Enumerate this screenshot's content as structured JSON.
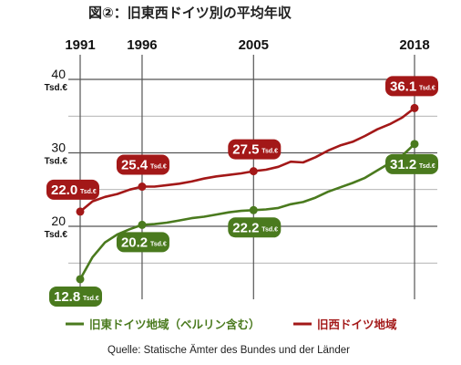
{
  "chart_data": {
    "type": "line",
    "title": "図②：旧東西ドイツ別の平均年収",
    "x": [
      1991,
      1992,
      1993,
      1994,
      1995,
      1996,
      1997,
      1998,
      1999,
      2000,
      2001,
      2002,
      2003,
      2004,
      2005,
      2006,
      2007,
      2008,
      2009,
      2010,
      2011,
      2012,
      2013,
      2014,
      2015,
      2016,
      2017,
      2018
    ],
    "x_ticks": [
      "1991",
      "1996",
      "2005",
      "2018"
    ],
    "x_tick_values": [
      1991,
      1996,
      2005,
      2018
    ],
    "xlim": [
      1990.5,
      2019
    ],
    "ylim": [
      10.5,
      42.5
    ],
    "y_ticks": [
      {
        "value": 40,
        "label": "40",
        "unit": "Tsd.€"
      },
      {
        "value": 30,
        "label": "30",
        "unit": "Tsd.€"
      },
      {
        "value": 20,
        "label": "20",
        "unit": "Tsd.€"
      }
    ],
    "grid": true,
    "series": [
      {
        "name": "旧西ドイツ地域",
        "color": "#a31818",
        "values": [
          22.0,
          23.4,
          24.0,
          24.4,
          25.0,
          25.4,
          25.4,
          25.6,
          25.8,
          26.1,
          26.5,
          26.8,
          27.0,
          27.2,
          27.5,
          27.7,
          28.1,
          28.8,
          28.7,
          29.4,
          30.3,
          31.0,
          31.5,
          32.3,
          33.2,
          33.9,
          34.8,
          36.1
        ],
        "labels": [
          {
            "x": 1991,
            "text": "22.0",
            "unit": "Tsd.€"
          },
          {
            "x": 1996,
            "text": "25.4",
            "unit": "Tsd.€"
          },
          {
            "x": 2005,
            "text": "27.5",
            "unit": "Tsd.€"
          },
          {
            "x": 2018,
            "text": "36.1",
            "unit": "Tsd.€"
          }
        ]
      },
      {
        "name": "旧東ドイツ地域（ベルリン含む）",
        "color": "#4a7a1e",
        "values": [
          12.8,
          15.8,
          17.8,
          18.9,
          19.6,
          20.2,
          20.3,
          20.5,
          20.8,
          21.1,
          21.3,
          21.6,
          21.9,
          22.1,
          22.2,
          22.3,
          22.5,
          23.0,
          23.3,
          23.9,
          24.7,
          25.3,
          25.9,
          26.6,
          27.6,
          28.6,
          29.6,
          31.2
        ],
        "labels": [
          {
            "x": 1991,
            "text": "12.8",
            "unit": "Tsd.€"
          },
          {
            "x": 1996,
            "text": "20.2",
            "unit": "Tsd.€"
          },
          {
            "x": 2005,
            "text": "22.2",
            "unit": "Tsd.€"
          },
          {
            "x": 2018,
            "text": "31.2",
            "unit": "Tsd.€"
          }
        ]
      }
    ],
    "legend_position": "bottom",
    "source": "Quelle: Statische Ämter des Bundes und der Länder"
  }
}
